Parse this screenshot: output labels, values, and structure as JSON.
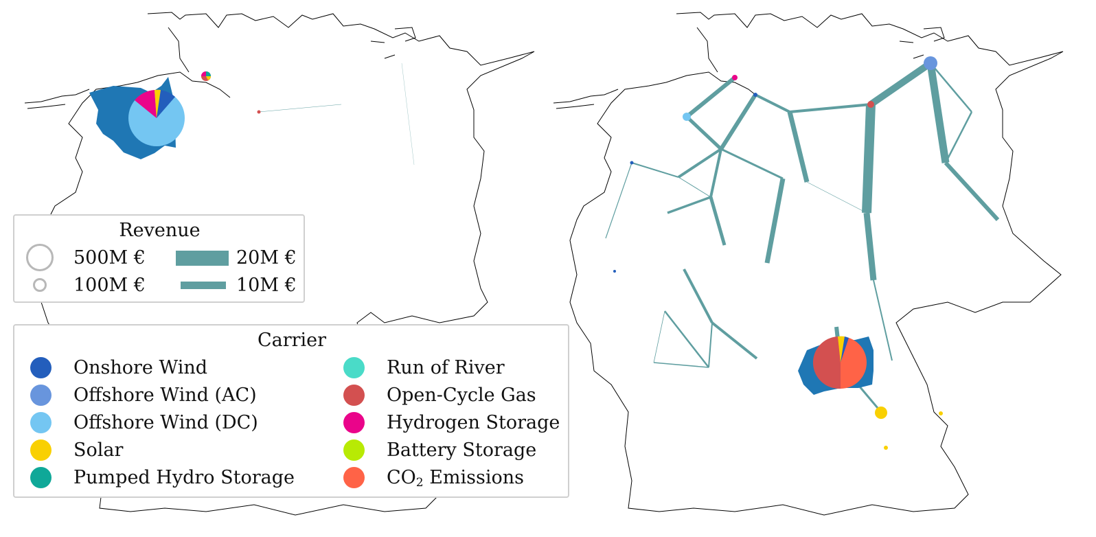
{
  "revenue_legend": {
    "title": "Revenue",
    "circle_sizes": [
      {
        "label": "500M €",
        "value_meur": 500
      },
      {
        "label": "100M €",
        "value_meur": 100
      }
    ],
    "line_widths": [
      {
        "label": "20M €",
        "value_meur": 20
      },
      {
        "label": "10M €",
        "value_meur": 10
      }
    ],
    "line_color": "#5f9ea0"
  },
  "carrier_legend": {
    "title": "Carrier",
    "items": [
      {
        "label": "Onshore Wind",
        "color": "#235ebc"
      },
      {
        "label": "Offshore Wind (AC)",
        "color": "#6895dd"
      },
      {
        "label": "Offshore Wind (DC)",
        "color": "#74c6f2"
      },
      {
        "label": "Solar",
        "color": "#f9d002"
      },
      {
        "label": "Pumped Hydro Storage",
        "color": "#0fa898"
      },
      {
        "label": "Run of River",
        "color": "#4adbc8"
      },
      {
        "label": "Open-Cycle Gas",
        "color": "#d35050"
      },
      {
        "label": "Hydrogen Storage",
        "color": "#ea048a"
      },
      {
        "label": "Battery Storage",
        "color": "#b8ea04"
      },
      {
        "label": "CO2 Emissions",
        "label_main": "CO",
        "label_sub": "2",
        "label_rest": " Emissions",
        "color": "#ff6347"
      }
    ]
  },
  "map_colors": {
    "border": "#000000",
    "region_fill": "#1f77b4",
    "line": "#5f9ea0"
  }
}
